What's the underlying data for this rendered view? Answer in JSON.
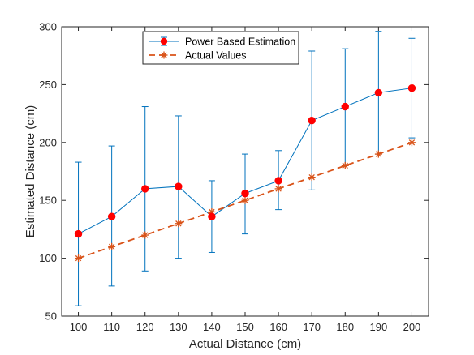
{
  "chart_data": {
    "type": "line",
    "xlabel": "Actual Distance (cm)",
    "ylabel": "Estimated Distance (cm)",
    "xlim": [
      95,
      205
    ],
    "ylim": [
      50,
      300
    ],
    "xticks": [
      100,
      110,
      120,
      130,
      140,
      150,
      160,
      170,
      180,
      190,
      200
    ],
    "yticks": [
      50,
      100,
      150,
      200,
      250,
      300
    ],
    "grid": false,
    "legend_position": "top-center",
    "x": [
      100,
      110,
      120,
      130,
      140,
      150,
      160,
      170,
      180,
      190,
      200
    ],
    "series": [
      {
        "name": "Power Based Estimation",
        "color": "#0072BD",
        "marker_color": "#FF0000",
        "style": "solid-errorbar",
        "values": [
          121,
          136,
          160,
          162,
          136,
          156,
          167,
          219,
          231,
          243,
          247
        ],
        "err_low": [
          59,
          76,
          89,
          100,
          105,
          121,
          142,
          159,
          180,
          190,
          204
        ],
        "err_high": [
          183,
          197,
          231,
          223,
          167,
          190,
          193,
          279,
          281,
          296,
          290
        ]
      },
      {
        "name": "Actual Values",
        "color": "#D95319",
        "style": "dashed-asterisk",
        "values": [
          100,
          110,
          120,
          130,
          140,
          150,
          160,
          170,
          180,
          190,
          200
        ]
      }
    ]
  }
}
